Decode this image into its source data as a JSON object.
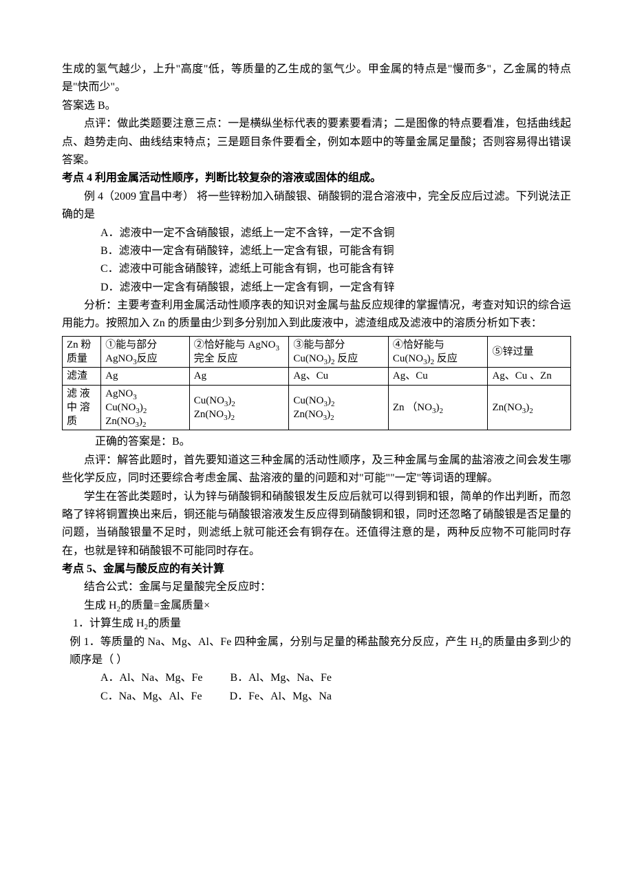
{
  "p1": "生成的氢气越少，上升\"高度\"低，等质量的乙生成的氢气少。甲金属的特点是\"慢而多\"，乙金属的特点是\"快而少\"。",
  "p2": "答案选 B。",
  "p3": "点评：做此类题要注意三点：一是横纵坐标代表的要素要看清；二是图像的特点要看准，包括曲线起点、趋势走向、曲线结束特点；三是题目条件要看全，例如本题中的等量金属足量酸；否则容易得出错误答案。",
  "h4": "考点 4 利用金属活动性顺序，判断比较复杂的溶液或固体的组成。",
  "p4": "例 4（2009 宜昌中考） 将一些锌粉加入硝酸银、硝酸铜的混合溶液中，完全反应后过滤。下列说法正确的是",
  "optA": "A．滤液中一定不含硝酸银，滤纸上一定不含锌，一定不含铜",
  "optB": "B．滤液中一定含有硝酸锌，滤纸上一定含有银，可能含有铜",
  "optC": "C．滤液中可能含硝酸锌，滤纸上可能含有铜，也可能含有锌",
  "optD": "D．滤液中一定含有硝酸银，滤纸上一定含有铜，一定含有锌",
  "p5": "分析：主要考查利用金属活动性顺序表的知识对金属与盐反应规律的掌握情况，考查对知识的综合运用能力。按照加入 Zn 的质量由少到多分别加入到此废液中，滤渣组成及滤液中的溶质分析如下表：",
  "table": {
    "columns": [
      {
        "label": "Zn 粉 质量"
      },
      {
        "label": "①能与部分AgNO₃反应"
      },
      {
        "label": "②恰好能与 AgNO₃ 完全  反应"
      },
      {
        "label": "③能与部分 Cu(NO₃)₂  反应"
      },
      {
        "label": "④恰好能与 Cu(NO₃)₂  反应"
      },
      {
        "label": "⑤锌过量"
      }
    ],
    "rows": [
      {
        "head": "滤渣",
        "cells": [
          "Ag",
          "Ag",
          "Ag、Cu",
          "Ag、Cu",
          "Ag、Cu 、Zn"
        ]
      },
      {
        "head": "滤 液中 溶质",
        "cells": [
          "AgNO₃\nCu(NO₃)₂\nZn(NO₃)₂",
          "Cu(NO₃)₂\nZn(NO₃)₂",
          "Cu(NO₃)₂\nZn(NO₃)₂",
          "Zn （NO₃)₂",
          "Zn(NO₃)₂"
        ]
      }
    ]
  },
  "p6": "正确的答案是：B。",
  "p7": "点评：解答此题时，首先要知道这三种金属的活动性顺序，及三种金属与金属的盐溶液之间会发生哪些化学反应，同时还要综合考虑金属、盐溶液的量的问题和对\"可能\"\"一定\"等词语的理解。",
  "p8": "学生在答此类题时，认为锌与硝酸铜和硝酸银发生反应后就可以得到铜和银，简单的作出判断，而忽略了锌将铜置换出来后，铜还能与硝酸银溶液发生反应得到硝酸铜和银，同时还忽略了硝酸银是否足量的问题，当硝酸银量不足时，则滤纸上就可能还会有铜存在。还值得注意的是，两种反应物不可能同时存在，也就是锌和硝酸银不可能同时存在。",
  "h5": "考点 5、金属与酸反应的有关计算",
  "p9": "结合公式：金属与足量酸完全反应时：",
  "p10": "生成 H₂的质量=金属质量×",
  "p11": "1．计算生成 H₂的质量",
  "p12": "例 1．等质量的 Na、Mg、Al、Fe 四种金属，分别与足量的稀盐酸充分反应，产生 H₂的质量由多到少的顺序是（   ）",
  "opts2": {
    "a": "A．Al、Na、Mg、Fe",
    "b": "B．Al、Mg、Na、Fe",
    "c": "C．Na、Mg、Al、Fe",
    "d": "D．Fe、Al、Mg、Na"
  }
}
